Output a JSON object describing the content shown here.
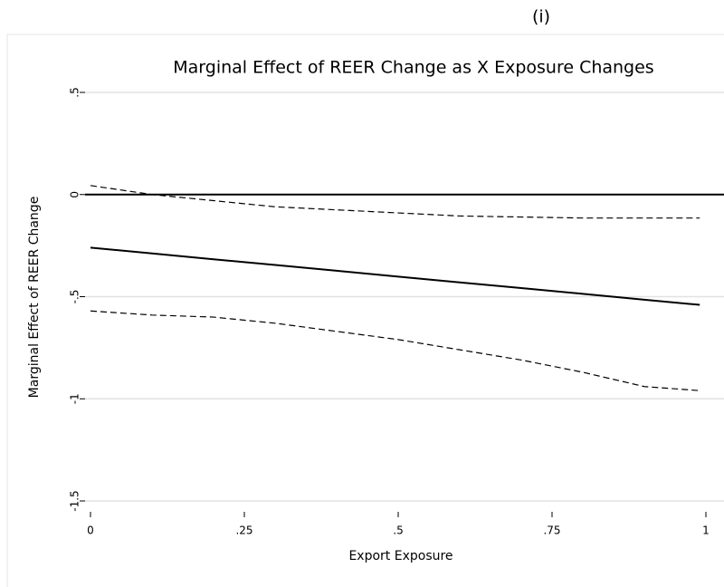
{
  "panel_label": "(i)",
  "chart_data": {
    "type": "line",
    "title": "Marginal Effect of REER Change as X Exposure Changes",
    "x_label": "Export Exposure",
    "y_label": "Marginal Effect of REER Change",
    "x": [
      0,
      0.1,
      0.2,
      0.3,
      0.4,
      0.5,
      0.6,
      0.7,
      0.8,
      0.9,
      0.99
    ],
    "series": [
      {
        "color": "#000000",
        "dash": false,
        "values": [
          -0.26,
          -0.288,
          -0.317,
          -0.345,
          -0.373,
          -0.402,
          -0.43,
          -0.458,
          -0.486,
          -0.515,
          -0.54
        ]
      },
      {
        "color": "#000000",
        "dash": true,
        "values": [
          0.044,
          0,
          -0.03,
          -0.06,
          -0.075,
          -0.09,
          -0.105,
          -0.11,
          -0.115,
          -0.115,
          -0.115
        ]
      },
      {
        "color": "#000000",
        "dash": true,
        "values": [
          -0.57,
          -0.59,
          -0.6,
          -0.63,
          -0.67,
          -0.71,
          -0.76,
          -0.81,
          -0.87,
          -0.94,
          -0.96
        ]
      }
    ],
    "reference_line": 0,
    "xlim": [
      0,
      1
    ],
    "ylim": [
      -1.5,
      0.5
    ],
    "xticks": [
      0,
      {
        "value": 0.25,
        "label": ".25"
      },
      {
        "value": 0.5,
        "label": ".5"
      },
      {
        "value": 0.75,
        "label": ".75"
      },
      1
    ],
    "yticks": [
      {
        "value": -1.5,
        "label": "-1.5"
      },
      {
        "value": -1,
        "label": "-1"
      },
      {
        "value": -0.5,
        "label": "-.5"
      },
      0,
      {
        "value": 0.5,
        "label": ".5"
      }
    ],
    "grid": true
  }
}
